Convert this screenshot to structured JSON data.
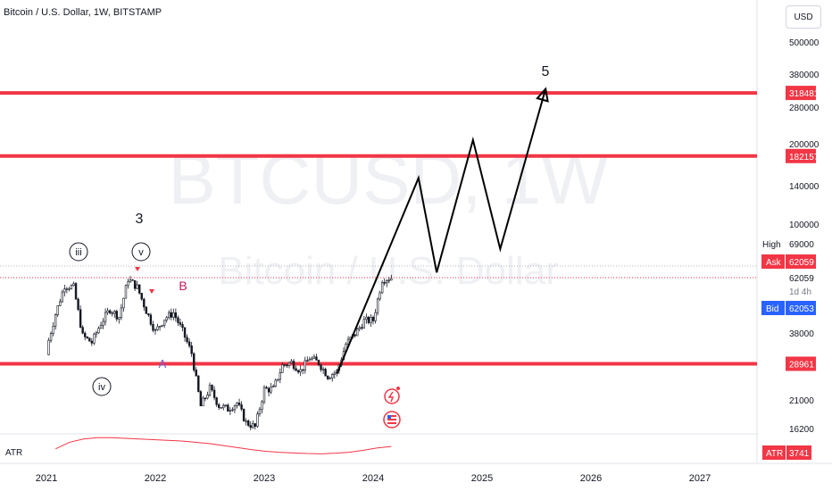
{
  "header": {
    "symbol_title": "Bitcoin / U.S. Dollar, 1W, BITSTAMP",
    "currency_button": "USD"
  },
  "watermark": {
    "ticker": "BTCUSD, 1W",
    "name": "Bitcoin / U.S. Dollar"
  },
  "price_scale": {
    "ticks": [
      "500000",
      "380000",
      "280000",
      "200000",
      "140000",
      "100000",
      "62059",
      "38000",
      "21000",
      "16200"
    ],
    "level_labels": [
      "318481",
      "182157",
      "28961"
    ],
    "high": {
      "label": "High",
      "value": "69000"
    },
    "ask": {
      "label": "Ask",
      "value": "62059"
    },
    "last": {
      "value": "62059",
      "countdown": "1d 4h"
    },
    "bid": {
      "label": "Bid",
      "value": "62053"
    }
  },
  "annotations": {
    "wave_5": "5",
    "wave_3": "3",
    "wave_iii": "iii",
    "wave_v": "v",
    "wave_iv": "iv",
    "wave_B": "B",
    "wave_A": "A"
  },
  "indicator": {
    "name": "ATR",
    "badge_label": "ATR",
    "badge_value": "3741"
  },
  "colors": {
    "resistance": "#f23645",
    "forecast": "#000000",
    "candle": "#000000",
    "atr_line": "#f23645",
    "wave_mark": "#c2185b",
    "wave_A": "#7e57c2"
  },
  "chart_data": {
    "type": "candlestick",
    "title": "Bitcoin / U.S. Dollar, 1W, BITSTAMP",
    "y_scale": "log",
    "x": [
      "2021-01",
      "2021-02",
      "2021-03",
      "2021-04",
      "2021-05",
      "2021-06",
      "2021-07",
      "2021-08",
      "2021-09",
      "2021-10",
      "2021-11",
      "2021-12",
      "2022-01",
      "2022-02",
      "2022-03",
      "2022-04",
      "2022-05",
      "2022-06",
      "2022-07",
      "2022-08",
      "2022-09",
      "2022-10",
      "2022-11",
      "2022-12",
      "2023-01",
      "2023-02",
      "2023-03",
      "2023-04",
      "2023-05",
      "2023-06",
      "2023-07",
      "2023-08",
      "2023-09",
      "2023-10",
      "2023-11",
      "2023-12",
      "2024-01",
      "2024-02",
      "2024-03"
    ],
    "close": [
      33000,
      45000,
      58000,
      57000,
      37000,
      35000,
      41500,
      47000,
      43800,
      61300,
      57000,
      46300,
      38500,
      43200,
      45500,
      38600,
      31800,
      19900,
      23300,
      20000,
      19400,
      20500,
      17200,
      16550,
      23100,
      23150,
      28500,
      29300,
      27200,
      30500,
      29200,
      26000,
      27000,
      34500,
      37700,
      42300,
      42600,
      61200,
      62059
    ],
    "price_levels": [
      {
        "label": "318481",
        "value": 318481
      },
      {
        "label": "182157",
        "value": 182157
      },
      {
        "label": "28961",
        "value": 28961
      }
    ],
    "projection": [
      {
        "x": "2023-09",
        "y": 26500
      },
      {
        "x": "2024-06",
        "y": 150000
      },
      {
        "x": "2024-08",
        "y": 65000
      },
      {
        "x": "2024-12",
        "y": 210000
      },
      {
        "x": "2025-03",
        "y": 80000
      },
      {
        "x": "2025-08",
        "y": 330000
      }
    ],
    "wave_labels": [
      {
        "text": "3",
        "x": "2021-11",
        "y": 110000
      },
      {
        "text": "iii",
        "x": "2021-03",
        "y": 80000
      },
      {
        "text": "v",
        "x": "2021-11",
        "y": 80000
      },
      {
        "text": "iv",
        "x": "2021-07",
        "y": 22000
      },
      {
        "text": "B",
        "x": "2022-03",
        "y": 50000
      },
      {
        "text": "A",
        "x": "2022-02",
        "y": 34000
      },
      {
        "text": "5",
        "x": "2025-07",
        "y": 420000
      }
    ],
    "x_ticks": [
      "2021",
      "2022",
      "2023",
      "2024",
      "2025",
      "2026",
      "2027"
    ],
    "atr_series": [
      3000,
      5000,
      6000,
      6400,
      6400,
      6200,
      6000,
      5800,
      5600,
      5400,
      5000,
      4600,
      4000,
      3400,
      2800,
      2300,
      2000,
      1800,
      1600,
      1500,
      1700,
      2000,
      2600,
      3300,
      3741
    ]
  }
}
